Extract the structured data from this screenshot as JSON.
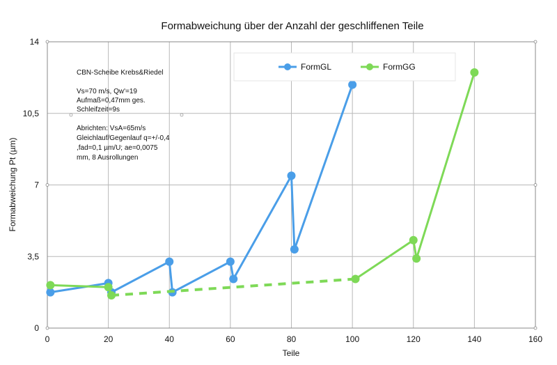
{
  "chart_data": {
    "type": "line",
    "title": "Formabweichung über der Anzahl der geschliffenen Teile",
    "xlabel": "Teile",
    "ylabel": "Formabweichung Pt (µm)",
    "xlim": [
      0,
      160
    ],
    "ylim": [
      0,
      14
    ],
    "xticks": [
      0,
      20,
      40,
      60,
      80,
      100,
      120,
      140,
      160
    ],
    "yticks": [
      0,
      3.5,
      7,
      10.5,
      14
    ],
    "ytick_labels": [
      "0",
      "3,5",
      "7",
      "10,5",
      "14"
    ],
    "grid": true,
    "legend_position": "top-right",
    "series": [
      {
        "name": "FormGL",
        "color": "#4a9ee8",
        "x": [
          1,
          20,
          21,
          40,
          41,
          60,
          61,
          80,
          81,
          100
        ],
        "y": [
          1.75,
          2.2,
          1.75,
          3.25,
          1.75,
          3.25,
          2.4,
          7.45,
          3.85,
          11.9
        ]
      },
      {
        "name": "FormGG",
        "color": "#7ed957",
        "x": [
          1,
          20,
          21,
          101,
          120,
          121,
          140
        ],
        "y": [
          2.1,
          2.0,
          1.6,
          2.4,
          4.3,
          3.4,
          12.5
        ],
        "dashed_segment": [
          2,
          3
        ]
      }
    ],
    "annotations": [
      "CBN-Scheibe Krebs&Riedel",
      "",
      "Vs=70 m/s, Qw'=19",
      "Aufmaß=0,47mm ges.",
      "Schleifzeit=9s",
      "",
      "Abrichten: VsA=65m/s",
      "Gleichlauf/Gegenlauf q=+/-0,4",
      ",fad=0,1 µm/U; ae=0,0075",
      "mm, 8 Ausrollungen"
    ]
  }
}
